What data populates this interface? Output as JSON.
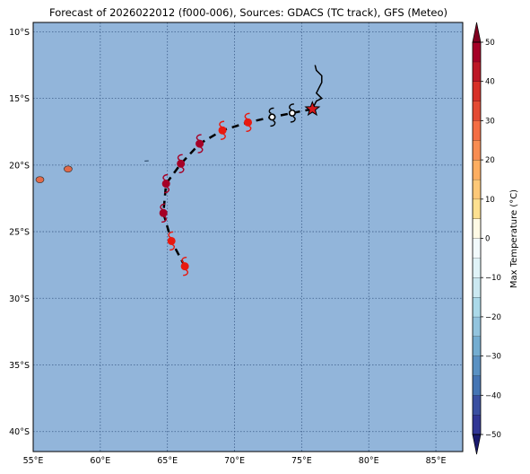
{
  "title": "Forecast of 2026022012 (f000-006), Sources: GDACS (TC track), GFS (Meteo)",
  "map": {
    "lon_range": [
      55,
      87
    ],
    "lat_range": [
      -41.5,
      -9.3
    ],
    "ocean_color": "#92b5da",
    "grid_color": "#3d5e8a",
    "lon_ticks": [
      {
        "value": 55,
        "label": "55°E"
      },
      {
        "value": 60,
        "label": "60°E"
      },
      {
        "value": 65,
        "label": "65°E"
      },
      {
        "value": 70,
        "label": "70°E"
      },
      {
        "value": 75,
        "label": "75°E"
      },
      {
        "value": 80,
        "label": "80°E"
      },
      {
        "value": 85,
        "label": "85°E"
      }
    ],
    "lat_ticks": [
      {
        "value": -10,
        "label": "10°S"
      },
      {
        "value": -15,
        "label": "15°S"
      },
      {
        "value": -20,
        "label": "20°S"
      },
      {
        "value": -25,
        "label": "25°S"
      },
      {
        "value": -30,
        "label": "30°S"
      },
      {
        "value": -35,
        "label": "35°S"
      },
      {
        "value": -40,
        "label": "40°S"
      }
    ],
    "islands": [
      {
        "name": "Reunion",
        "lon": 55.5,
        "lat": -21.1,
        "color": "#e06a4a"
      },
      {
        "name": "Mauritius",
        "lon": 57.6,
        "lat": -20.3,
        "color": "#e06a4a"
      }
    ],
    "observed_track": [
      [
        75.9,
        -15.6
      ],
      [
        76.1,
        -15.2
      ],
      [
        76.5,
        -15.0
      ],
      [
        76.1,
        -14.6
      ],
      [
        76.3,
        -14.2
      ],
      [
        76.5,
        -13.8
      ],
      [
        76.5,
        -13.3
      ],
      [
        76.1,
        -12.9
      ],
      [
        76.0,
        -12.5
      ]
    ],
    "forecast_track": [
      [
        75.8,
        -15.8
      ],
      [
        74.3,
        -16.1
      ],
      [
        72.8,
        -16.4
      ],
      [
        71.0,
        -16.8
      ],
      [
        69.1,
        -17.4
      ],
      [
        67.4,
        -18.4
      ],
      [
        66.0,
        -19.9
      ],
      [
        64.9,
        -21.4
      ],
      [
        64.7,
        -23.6
      ],
      [
        65.3,
        -25.7
      ],
      [
        66.3,
        -27.6
      ]
    ],
    "current_position": {
      "lon": 75.8,
      "lat": -15.8,
      "color": "#d7191c"
    },
    "storm_symbols": [
      {
        "lon": 74.3,
        "lat": -16.1,
        "color": "#000000",
        "filled": false
      },
      {
        "lon": 72.8,
        "lat": -16.4,
        "color": "#000000",
        "filled": false
      },
      {
        "lon": 71.0,
        "lat": -16.8,
        "color": "#e8190f",
        "filled": true
      },
      {
        "lon": 69.1,
        "lat": -17.4,
        "color": "#e8190f",
        "filled": true
      },
      {
        "lon": 67.4,
        "lat": -18.4,
        "color": "#a50026",
        "filled": true
      },
      {
        "lon": 66.0,
        "lat": -19.9,
        "color": "#a50026",
        "filled": true
      },
      {
        "lon": 64.9,
        "lat": -21.4,
        "color": "#a50026",
        "filled": true
      },
      {
        "lon": 64.7,
        "lat": -23.6,
        "color": "#a50026",
        "filled": true
      },
      {
        "lon": 65.3,
        "lat": -25.7,
        "color": "#e8190f",
        "filled": true
      },
      {
        "lon": 66.3,
        "lat": -27.6,
        "color": "#e8190f",
        "filled": true
      }
    ]
  },
  "colorbar": {
    "label": "Max Temperature (°C)",
    "min": -50,
    "max": 50,
    "step": 5,
    "tick_values": [
      -50,
      -40,
      -30,
      -20,
      -10,
      0,
      10,
      20,
      30,
      40,
      50
    ],
    "colors": [
      "#313695",
      "#3a4fa1",
      "#4575b4",
      "#5a91c3",
      "#74add1",
      "#93c4de",
      "#abd9e9",
      "#cbe8f1",
      "#e0f3f8",
      "#f2fafc",
      "#fffae5",
      "#fee090",
      "#fdc878",
      "#fdae61",
      "#f88d52",
      "#f46d43",
      "#e34a33",
      "#d73027",
      "#bd1726",
      "#a50026"
    ],
    "under_color": "#1a1a6e",
    "over_color": "#800020"
  }
}
